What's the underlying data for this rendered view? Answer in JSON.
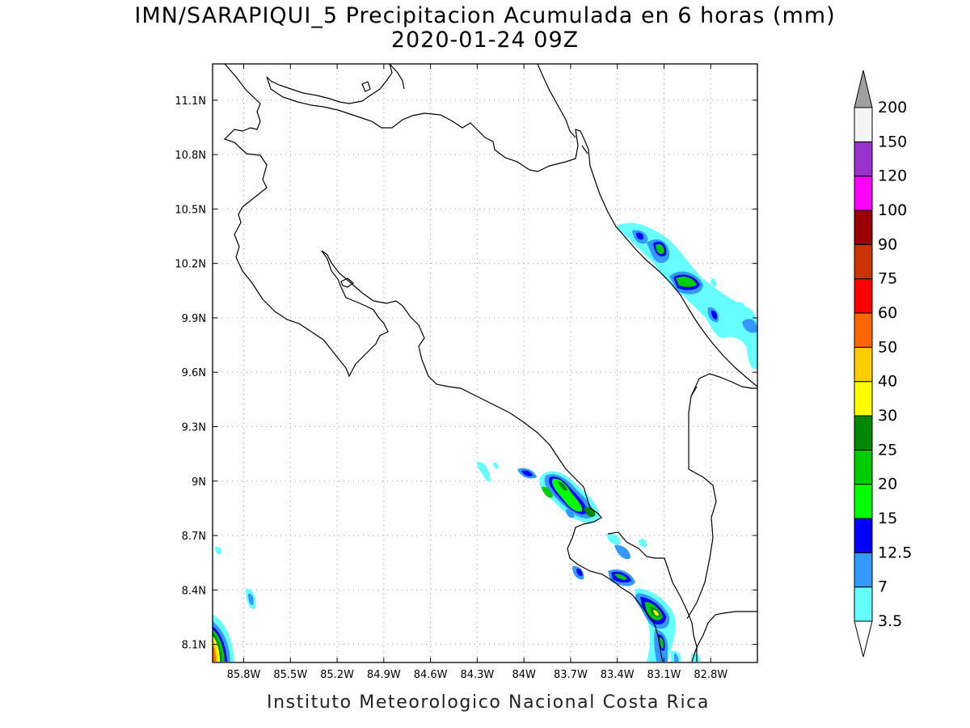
{
  "title_line1": "IMN/SARAPIQUI_5 Precipitacion Acumulada en 6 horas (mm)",
  "title_line2": "2020-01-24 09Z",
  "footer": "Instituto Meteorologico Nacional Costa Rica",
  "map": {
    "lon_range": [
      -86.0,
      -82.5
    ],
    "lat_range": [
      8.0,
      11.3
    ],
    "lon_ticks": [
      {
        "value": -85.8,
        "label": "85.8W"
      },
      {
        "value": -85.5,
        "label": "85.5W"
      },
      {
        "value": -85.2,
        "label": "85.2W"
      },
      {
        "value": -84.9,
        "label": "84.9W"
      },
      {
        "value": -84.6,
        "label": "84.6W"
      },
      {
        "value": -84.3,
        "label": "84.3W"
      },
      {
        "value": -84.0,
        "label": "84W"
      },
      {
        "value": -83.7,
        "label": "83.7W"
      },
      {
        "value": -83.4,
        "label": "83.4W"
      },
      {
        "value": -83.1,
        "label": "83.1W"
      },
      {
        "value": -82.8,
        "label": "82.8W"
      }
    ],
    "lat_ticks": [
      {
        "value": 8.1,
        "label": "8.1N"
      },
      {
        "value": 8.4,
        "label": "8.4N"
      },
      {
        "value": 8.7,
        "label": "8.7N"
      },
      {
        "value": 9.0,
        "label": "9N"
      },
      {
        "value": 9.3,
        "label": "9.3N"
      },
      {
        "value": 9.6,
        "label": "9.6N"
      },
      {
        "value": 9.9,
        "label": "9.9N"
      },
      {
        "value": 10.2,
        "label": "10.2N"
      },
      {
        "value": 10.5,
        "label": "10.5N"
      },
      {
        "value": 10.8,
        "label": "10.8N"
      },
      {
        "value": 11.1,
        "label": "11.1N"
      }
    ],
    "grid": true
  },
  "colorbar": {
    "levels": [
      "3.5",
      "7",
      "12.5",
      "15",
      "20",
      "25",
      "30",
      "40",
      "50",
      "60",
      "75",
      "90",
      "100",
      "120",
      "150",
      "200"
    ],
    "colors": [
      "#66ffff",
      "#3399ff",
      "#0000ff",
      "#00ff00",
      "#00cc00",
      "#008800",
      "#ffff00",
      "#ffcc00",
      "#ff6600",
      "#ff0000",
      "#cc3300",
      "#990000",
      "#ff00ff",
      "#9933cc",
      "#f5f5f5"
    ],
    "over_color": "#a0a0a0",
    "under_color": "#ffffff"
  }
}
